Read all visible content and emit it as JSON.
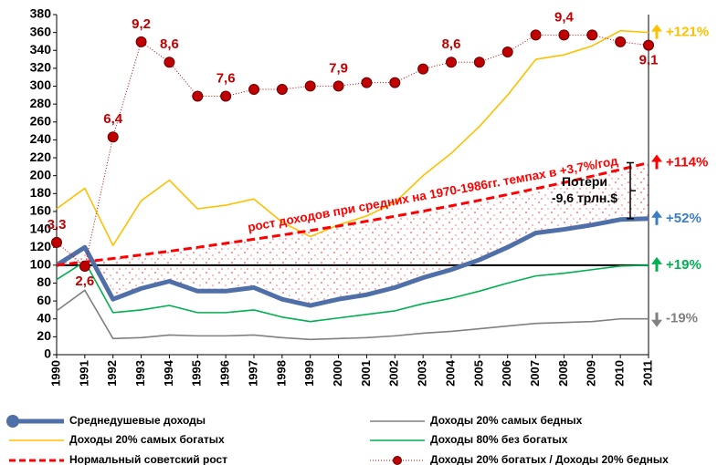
{
  "chart_data": {
    "type": "line",
    "categories": [
      "1990",
      "1991",
      "1992",
      "1993",
      "1994",
      "1995",
      "1996",
      "1997",
      "1998",
      "1999",
      "2000",
      "2001",
      "2002",
      "2003",
      "2004",
      "2005",
      "2006",
      "2007",
      "2008",
      "2009",
      "2010",
      "2011"
    ],
    "ylim": [
      0,
      380
    ],
    "yticks": [
      0,
      20,
      40,
      60,
      80,
      100,
      120,
      140,
      160,
      180,
      200,
      220,
      240,
      260,
      280,
      300,
      320,
      340,
      360,
      380
    ],
    "y2lim": [
      0,
      10
    ],
    "reference_line": 100,
    "trend_label": "рост доходов при средних на 1970-1986гг. темпах в +3,7%/год",
    "loss_label": [
      "Потери",
      "-9,6 трлн.$"
    ],
    "series": [
      {
        "name": "Среднедушевые доходы",
        "color": "#4f6fa8",
        "width": 5,
        "end_label": "+52%",
        "end_color": "#3c7dc4",
        "values": [
          100,
          120,
          62,
          74,
          82,
          71,
          71,
          75,
          62,
          55,
          62,
          67,
          75,
          86,
          95,
          106,
          120,
          136,
          140,
          145,
          151,
          152
        ]
      },
      {
        "name": "Доходы 20% самых богатых",
        "color": "#ffc000",
        "width": 1.6,
        "end_label": "+121%",
        "end_color": "#ffc000",
        "values": [
          163,
          186,
          122,
          172,
          195,
          163,
          167,
          174,
          148,
          132,
          145,
          155,
          170,
          200,
          225,
          255,
          290,
          330,
          335,
          345,
          362,
          360
        ]
      },
      {
        "name": "Нормальный советский рост",
        "color": "#ff0000",
        "width": 3,
        "style": "dashed",
        "end_label": "+114%",
        "end_color": "#ff0000",
        "values": [
          100,
          103.7,
          107.5,
          111.5,
          115.6,
          119.9,
          124.4,
          129.0,
          133.7,
          138.7,
          143.8,
          149.1,
          154.7,
          160.4,
          166.3,
          172.5,
          178.9,
          185.5,
          192.3,
          199.5,
          206.8,
          214.5
        ]
      },
      {
        "name": "Доходы 20% самых бедных",
        "color": "#808080",
        "width": 1.6,
        "end_label": "-19%",
        "end_color": "#808080",
        "end_down": true,
        "values": [
          49,
          72,
          18,
          19,
          22,
          21,
          21,
          22,
          19,
          17,
          18,
          19,
          21,
          24,
          26,
          29,
          32,
          35,
          36,
          37,
          40,
          40
        ]
      },
      {
        "name": "Доходы 80% без богатых",
        "color": "#00b050",
        "width": 1.6,
        "end_label": "+19%",
        "end_color": "#00b050",
        "values": [
          84,
          104,
          47,
          50,
          55,
          47,
          47,
          50,
          42,
          37,
          41,
          45,
          49,
          57,
          63,
          71,
          80,
          88,
          91,
          95,
          99,
          100
        ]
      },
      {
        "name": "Доходы 20% богатых / Доходы 20% бедных",
        "color": "#c00000",
        "style": "dots",
        "axis": "y2",
        "values": [
          3.3,
          2.6,
          6.4,
          9.2,
          8.6,
          7.6,
          7.6,
          7.8,
          7.8,
          7.9,
          7.9,
          8.0,
          8.0,
          8.4,
          8.6,
          8.6,
          8.9,
          9.4,
          9.4,
          9.4,
          9.2,
          9.1
        ],
        "value_labels": [
          "3,3",
          "2,6",
          "6,4",
          "9,2",
          "8,6",
          null,
          "7,6",
          null,
          null,
          null,
          "7,9",
          null,
          null,
          null,
          "8,6",
          null,
          null,
          null,
          "9,4",
          null,
          null,
          "9,1"
        ]
      }
    ]
  }
}
